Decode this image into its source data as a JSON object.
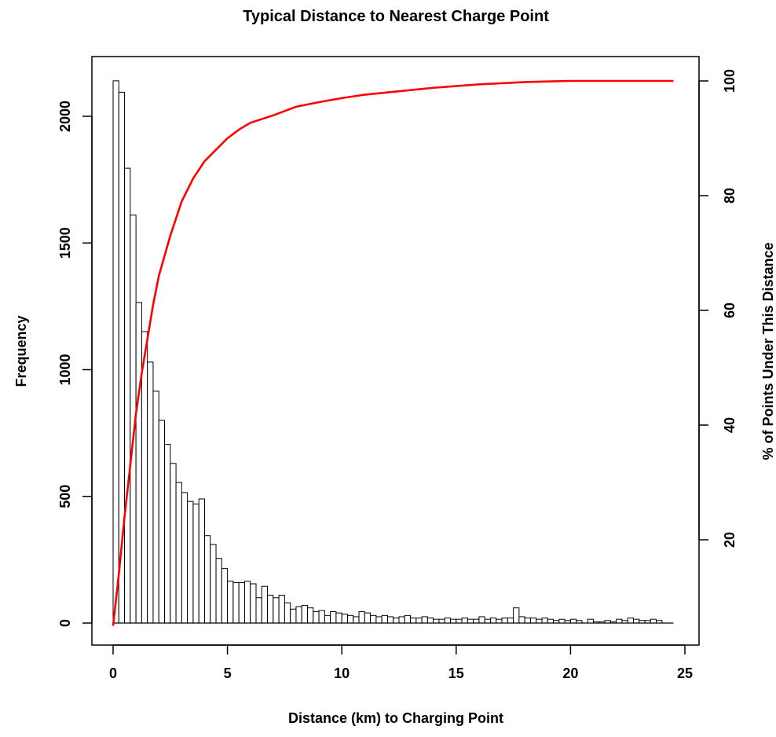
{
  "chart_data": {
    "type": "bar",
    "title": "Typical Distance to Nearest Charge Point",
    "xlabel": "Distance (km) to Charging Point",
    "ylabel": "Frequency",
    "ylabel_right": "% of Points Under This Distance",
    "xlim": [
      0,
      25
    ],
    "ylim": [
      0,
      2150
    ],
    "ylim_right": [
      5,
      100
    ],
    "x_ticks": [
      0,
      5,
      10,
      15,
      20,
      25
    ],
    "y_ticks": [
      0,
      500,
      1000,
      1500,
      2000
    ],
    "y_ticks_right": [
      20,
      40,
      60,
      80,
      100
    ],
    "grid": false,
    "bin_width": 0.25,
    "bin_start": 0,
    "colors": {
      "bars_fill": "#ffffff",
      "bars_stroke": "#000000",
      "cumulative_line": "#ff0000"
    },
    "series": [
      {
        "type": "bar",
        "values": [
          2140,
          2095,
          1795,
          1610,
          1265,
          1150,
          1030,
          915,
          800,
          705,
          630,
          555,
          515,
          480,
          470,
          490,
          345,
          310,
          255,
          215,
          165,
          160,
          160,
          165,
          155,
          100,
          145,
          110,
          100,
          110,
          80,
          55,
          65,
          70,
          60,
          45,
          50,
          30,
          45,
          40,
          35,
          30,
          25,
          45,
          40,
          30,
          25,
          30,
          25,
          20,
          25,
          30,
          20,
          20,
          25,
          20,
          15,
          15,
          20,
          15,
          15,
          20,
          15,
          15,
          25,
          15,
          20,
          15,
          20,
          20,
          60,
          25,
          20,
          20,
          15,
          20,
          15,
          10,
          15,
          10,
          15,
          10,
          0,
          15,
          5,
          5,
          10,
          5,
          15,
          10,
          20,
          15,
          10,
          10,
          15,
          10,
          0,
          0,
          0,
          0
        ]
      },
      {
        "type": "line",
        "axis": "right",
        "x": [
          0,
          0.25,
          0.5,
          0.75,
          1,
          1.25,
          1.5,
          1.75,
          2,
          2.5,
          3,
          3.5,
          4,
          4.5,
          5,
          5.5,
          6,
          7,
          8,
          9,
          10,
          11,
          12,
          13,
          14,
          15,
          16,
          17,
          18,
          19,
          20,
          21,
          22,
          23,
          24,
          24.5
        ],
        "y": [
          5,
          14,
          24,
          33,
          42,
          49,
          55,
          61,
          66,
          73,
          79,
          83,
          86,
          88,
          90,
          91.5,
          92.7,
          94,
          95.5,
          96.3,
          97,
          97.6,
          98,
          98.4,
          98.8,
          99.1,
          99.4,
          99.6,
          99.8,
          99.9,
          100,
          100,
          100,
          100,
          100,
          100
        ]
      }
    ]
  }
}
